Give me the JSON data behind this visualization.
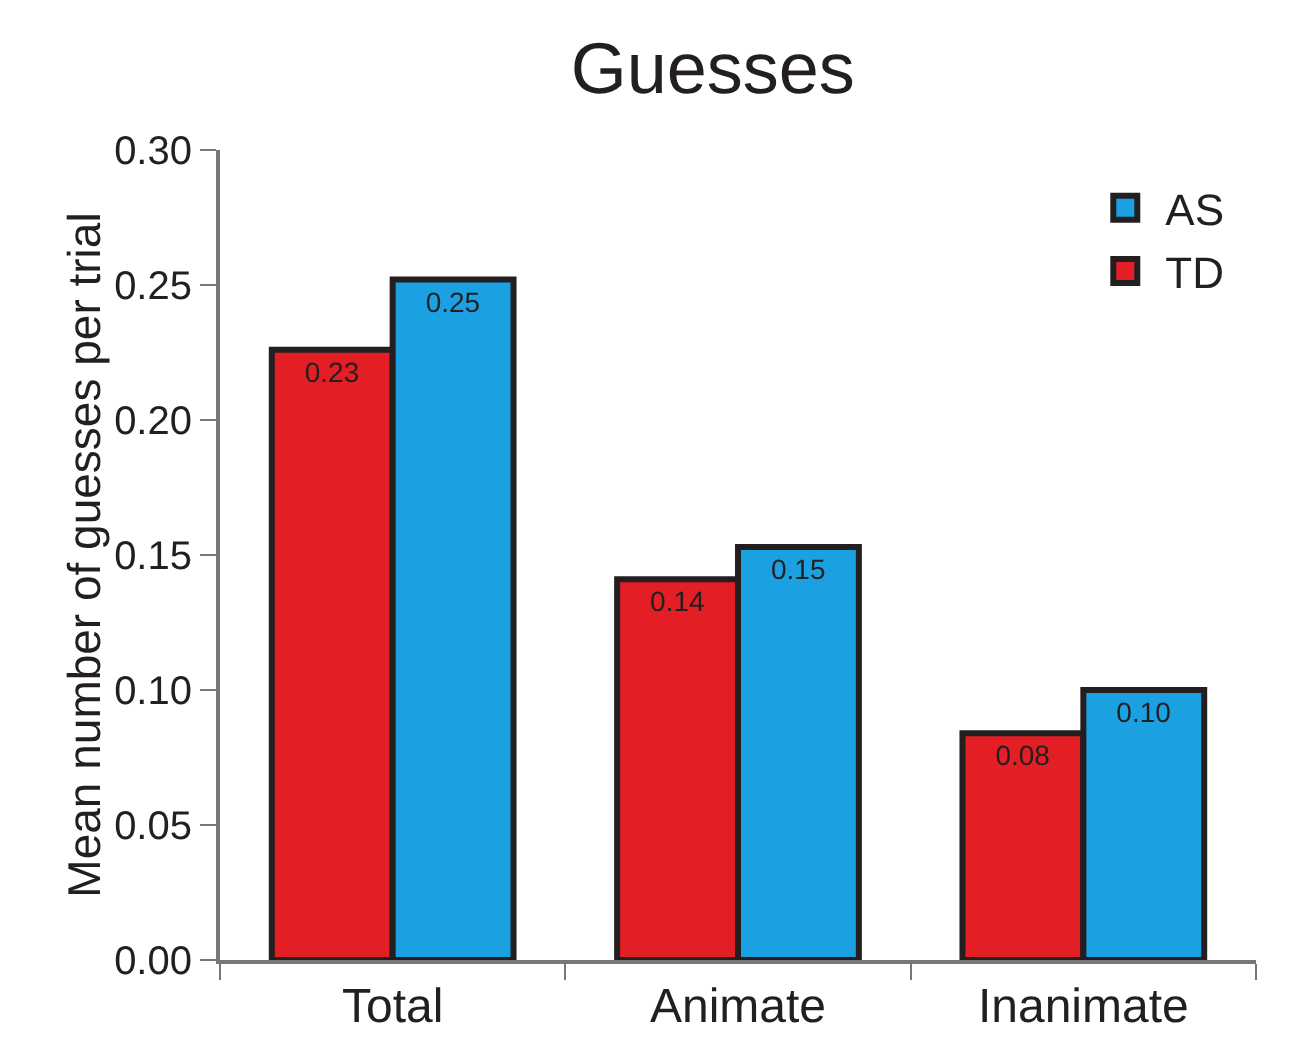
{
  "chart_data": {
    "type": "bar",
    "title": "Guesses",
    "ylabel": "Mean number of guesses per trial",
    "categories": [
      "Total",
      "Animate",
      "Inanimate"
    ],
    "series": [
      {
        "name": "TD",
        "color": "#e31e24",
        "values": [
          0.226,
          0.141,
          0.084
        ],
        "value_labels": [
          "0.23",
          "0.14",
          "0.08"
        ]
      },
      {
        "name": "AS",
        "color": "#1ba1e2",
        "values": [
          0.252,
          0.153,
          0.1
        ],
        "value_labels": [
          "0.25",
          "0.15",
          "0.10"
        ]
      }
    ],
    "ylim": [
      0,
      0.3
    ],
    "yticks": [
      {
        "value": 0,
        "label": "0.00"
      },
      {
        "value": 0.05,
        "label": "0.05"
      },
      {
        "value": 0.1,
        "label": "0.10"
      },
      {
        "value": 0.15,
        "label": "0.15"
      },
      {
        "value": 0.2,
        "label": "0.20"
      },
      {
        "value": 0.25,
        "label": "0.25"
      },
      {
        "value": 0.3,
        "label": "0.30"
      }
    ],
    "grid": false,
    "legend": "top right"
  }
}
